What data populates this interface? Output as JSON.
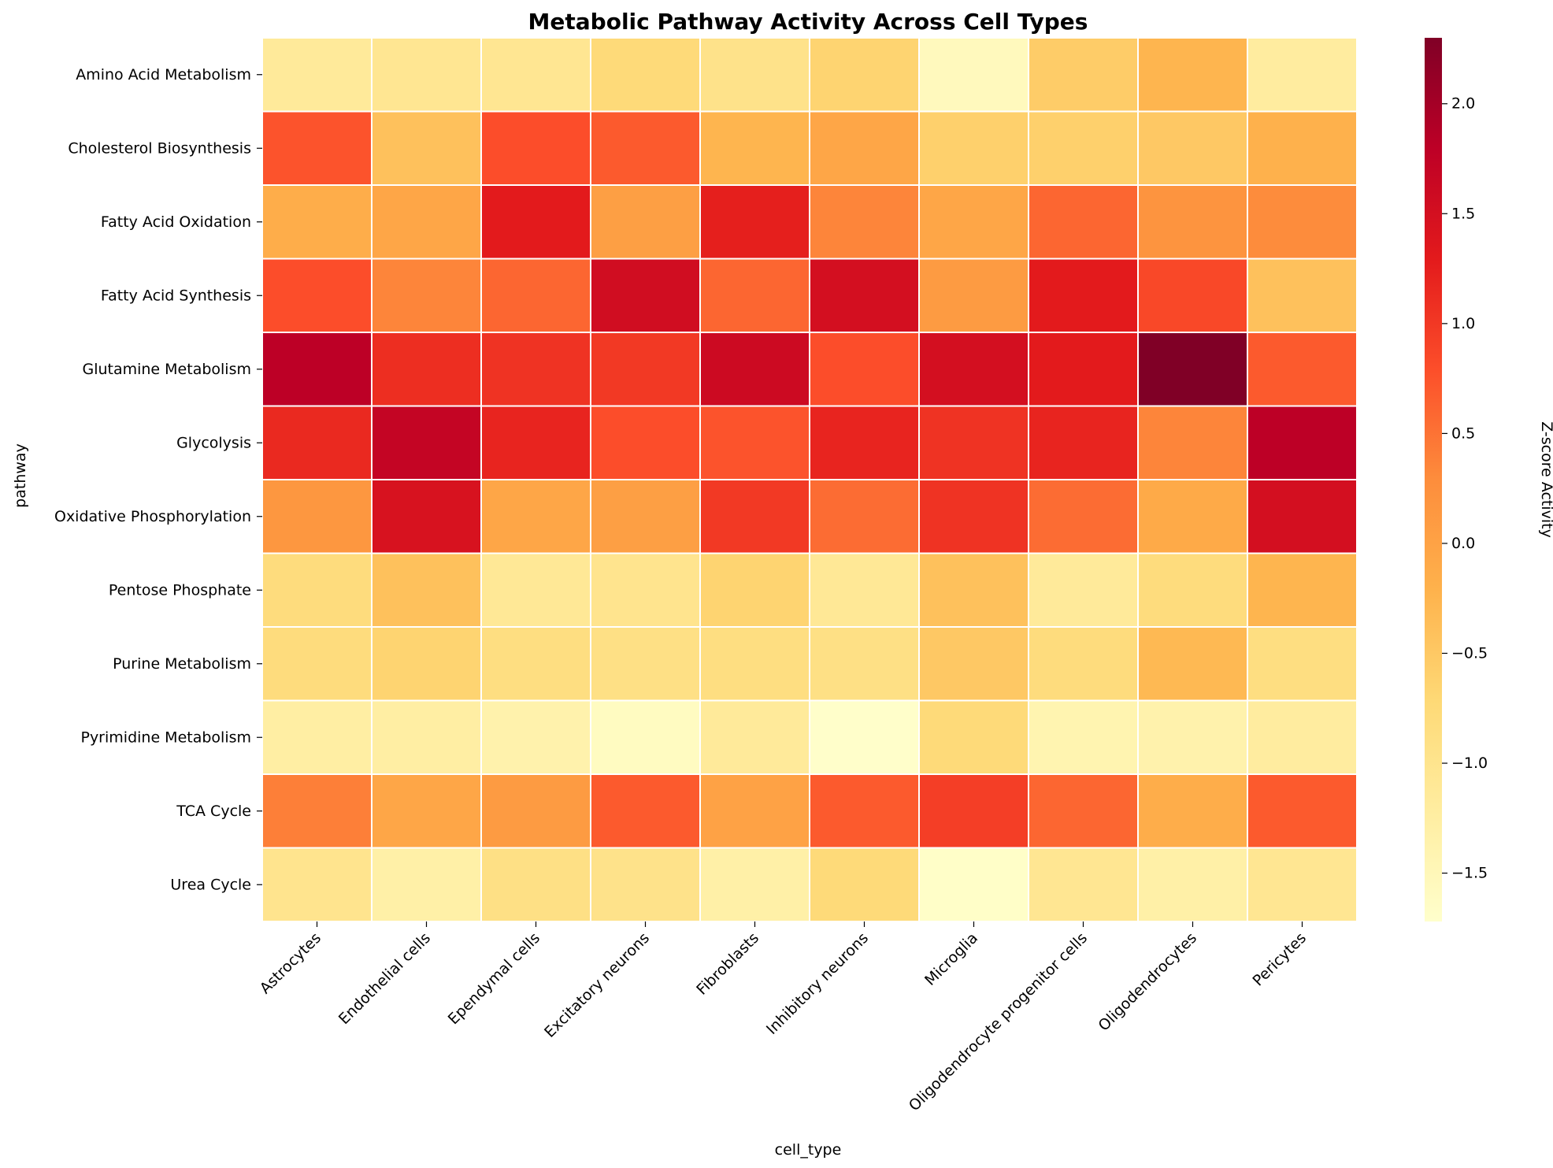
{
  "chart_data": {
    "type": "heatmap",
    "title": "Metabolic Pathway Activity Across Cell Types",
    "xlabel": "cell_type",
    "ylabel": "pathway",
    "colorbar_label": "Z-score Activity",
    "colormap": "YlOrRd",
    "vmin": -1.72,
    "vmax": 2.3,
    "colorbar_ticks": [
      -1.5,
      -1.0,
      -0.5,
      0.0,
      0.5,
      1.0,
      1.5,
      2.0
    ],
    "colorbar_tick_labels": [
      "−1.5",
      "−1.0",
      "−0.5",
      "0.0",
      "0.5",
      "1.0",
      "1.5",
      "2.0"
    ],
    "x_categories": [
      "Astrocytes",
      "Endothelial cells",
      "Ependymal cells",
      "Excitatory neurons",
      "Fibroblasts",
      "Inhibitory neurons",
      "Microglia",
      "Oligodendrocyte progenitor cells",
      "Oligodendrocytes",
      "Pericytes"
    ],
    "y_categories": [
      "Amino Acid Metabolism",
      "Cholesterol Biosynthesis",
      "Fatty Acid Oxidation",
      "Fatty Acid Synthesis",
      "Glutamine Metabolism",
      "Glycolysis",
      "Oxidative Phosphorylation",
      "Pentose Phosphate",
      "Purine Metabolism",
      "Pyrimidine Metabolism",
      "TCA Cycle",
      "Urea Cycle"
    ],
    "values": [
      [
        -1.15,
        -1.05,
        -1.05,
        -0.75,
        -0.95,
        -0.65,
        -1.55,
        -0.55,
        -0.25,
        -1.2
      ],
      [
        0.75,
        -0.4,
        0.8,
        0.7,
        -0.25,
        -0.05,
        -0.6,
        -0.6,
        -0.5,
        -0.2
      ],
      [
        -0.15,
        -0.05,
        1.3,
        0.05,
        1.25,
        0.35,
        -0.05,
        0.6,
        0.2,
        0.3
      ],
      [
        0.8,
        0.35,
        0.6,
        1.55,
        0.6,
        1.5,
        0.1,
        1.3,
        0.85,
        -0.4
      ],
      [
        1.8,
        1.1,
        1.05,
        1.0,
        1.6,
        0.8,
        1.5,
        1.3,
        2.3,
        0.7
      ],
      [
        1.15,
        1.7,
        1.2,
        0.8,
        0.75,
        1.2,
        1.05,
        1.2,
        0.35,
        1.8
      ],
      [
        0.15,
        1.45,
        -0.05,
        0.05,
        1.0,
        0.55,
        1.05,
        0.55,
        -0.1,
        1.5
      ],
      [
        -0.8,
        -0.4,
        -1.1,
        -1.0,
        -0.65,
        -1.1,
        -0.4,
        -1.15,
        -0.8,
        -0.25
      ],
      [
        -0.8,
        -0.65,
        -0.85,
        -0.9,
        -0.85,
        -0.9,
        -0.5,
        -0.8,
        -0.3,
        -0.85
      ],
      [
        -1.25,
        -1.25,
        -1.35,
        -1.6,
        -1.15,
        -1.7,
        -0.75,
        -1.4,
        -1.35,
        -1.2
      ],
      [
        0.4,
        -0.05,
        0.1,
        0.7,
        0.0,
        0.7,
        0.95,
        0.6,
        -0.15,
        0.7
      ],
      [
        -1.0,
        -1.3,
        -0.9,
        -0.95,
        -1.3,
        -0.75,
        -1.68,
        -1.05,
        -1.3,
        -1.05
      ]
    ]
  }
}
